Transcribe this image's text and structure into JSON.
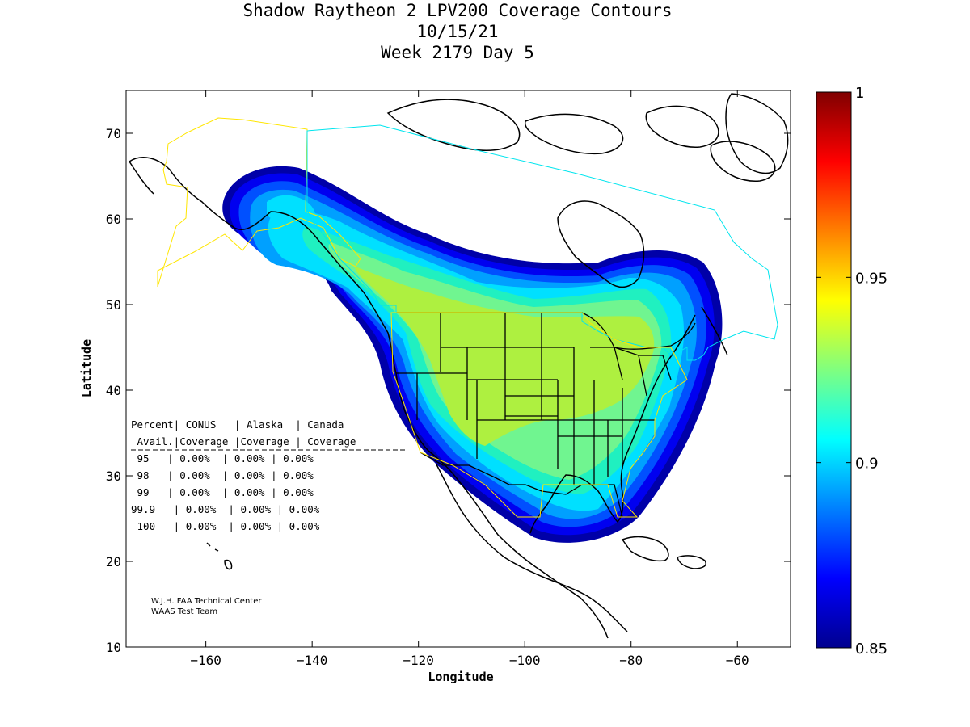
{
  "title": {
    "line1": "Shadow Raytheon 2 LPV200 Coverage Contours",
    "line2": "10/15/21",
    "line3": "Week 2179 Day 5"
  },
  "axes": {
    "xlabel": "Longitude",
    "ylabel": "Latitude",
    "xlim": [
      -175,
      -50
    ],
    "ylim": [
      10,
      75
    ],
    "xticks": [
      -160,
      -140,
      -120,
      -100,
      -80,
      -60
    ],
    "yticks": [
      10,
      20,
      30,
      40,
      50,
      60,
      70
    ]
  },
  "colorbar": {
    "range": [
      0.85,
      1
    ],
    "ticks": [
      "0.85",
      "0.9",
      "0.95",
      "1"
    ],
    "tick_values": [
      0.85,
      0.9,
      0.95,
      1
    ]
  },
  "table": {
    "header1": "Percent| CONUS   | Alaska  | Canada",
    "header2": " Avail.|Coverage |Coverage | Coverage",
    "rows": [
      " 95   | 0.00%  | 0.00% | 0.00%",
      " 98   | 0.00%  | 0.00% | 0.00%",
      " 99   | 0.00%  | 0.00% | 0.00%",
      "99.9   | 0.00%  | 0.00% | 0.00%",
      " 100   | 0.00%  | 0.00% | 0.00%"
    ]
  },
  "credit": {
    "line1": "W.J.H. FAA Technical Center",
    "line2": "WAAS Test Team"
  },
  "chart_data": {
    "type": "heatmap",
    "title": "Shadow Raytheon 2 LPV200 Coverage Contours",
    "xlabel": "Longitude",
    "ylabel": "Latitude",
    "xlim": [
      -175,
      -50
    ],
    "ylim": [
      10,
      75
    ],
    "colorbar_range": [
      0.85,
      1
    ],
    "coverage_summary": [
      {
        "percent_avail": "95",
        "conus": "0.00%",
        "alaska": "0.00%",
        "canada": "0.00%"
      },
      {
        "percent_avail": "98",
        "conus": "0.00%",
        "alaska": "0.00%",
        "canada": "0.00%"
      },
      {
        "percent_avail": "99",
        "conus": "0.00%",
        "alaska": "0.00%",
        "canada": "0.00%"
      },
      {
        "percent_avail": "99.9",
        "conus": "0.00%",
        "alaska": "0.00%",
        "canada": "0.00%"
      },
      {
        "percent_avail": "100",
        "conus": "0.00%",
        "alaska": "0.00%",
        "canada": "0.00%"
      }
    ],
    "max_availability_contour": 0.93,
    "contour_levels": [
      0.85,
      0.86,
      0.87,
      0.88,
      0.89,
      0.9,
      0.91,
      0.92,
      0.93
    ],
    "grid": false
  }
}
